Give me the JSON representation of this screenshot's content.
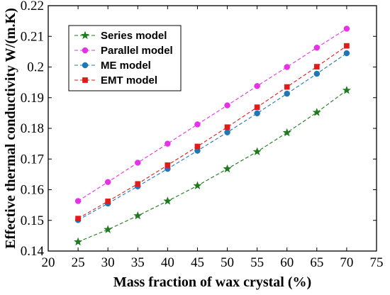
{
  "chart_data": {
    "type": "line",
    "title": "",
    "xlabel": "Mass fraction of wax crystal (%)",
    "ylabel": "Effective thermal conductivity  W/(m.K)",
    "xlim": [
      20,
      75
    ],
    "ylim": [
      0.14,
      0.22
    ],
    "xticks": [
      20,
      25,
      30,
      35,
      40,
      45,
      50,
      55,
      60,
      65,
      70,
      75
    ],
    "yticks": [
      0.14,
      0.15,
      0.16,
      0.17,
      0.18,
      0.19,
      0.2,
      0.21,
      0.22
    ],
    "ytick_labels": [
      "0.14",
      "0.15",
      "0.16",
      "0.17",
      "0.18",
      "0.19",
      "0.2",
      "0.21",
      "0.22"
    ],
    "grid": false,
    "legend_position": "top-left",
    "x": [
      25,
      30,
      35,
      40,
      45,
      50,
      55,
      60,
      65,
      70
    ],
    "series": [
      {
        "name": "Series  model",
        "color": "#1e7a1e",
        "marker": "star",
        "values": [
          0.143,
          0.147,
          0.1515,
          0.1563,
          0.1613,
          0.1668,
          0.1724,
          0.1786,
          0.1852,
          0.1924
        ]
      },
      {
        "name": "Parallel model",
        "color": "#e632e6",
        "marker": "circle",
        "values": [
          0.1563,
          0.1625,
          0.1688,
          0.175,
          0.1813,
          0.1875,
          0.1938,
          0.2,
          0.2063,
          0.2125
        ]
      },
      {
        "name": "ME model",
        "color": "#1f77b4",
        "marker": "circle",
        "values": [
          0.1501,
          0.1555,
          0.1611,
          0.1668,
          0.1727,
          0.1787,
          0.1849,
          0.1913,
          0.1978,
          0.2045
        ]
      },
      {
        "name": "EMT model",
        "color": "#e31a1c",
        "marker": "square",
        "values": [
          0.1506,
          0.1562,
          0.1619,
          0.168,
          0.1741,
          0.1804,
          0.1869,
          0.1935,
          0.2001,
          0.2069
        ]
      }
    ]
  }
}
